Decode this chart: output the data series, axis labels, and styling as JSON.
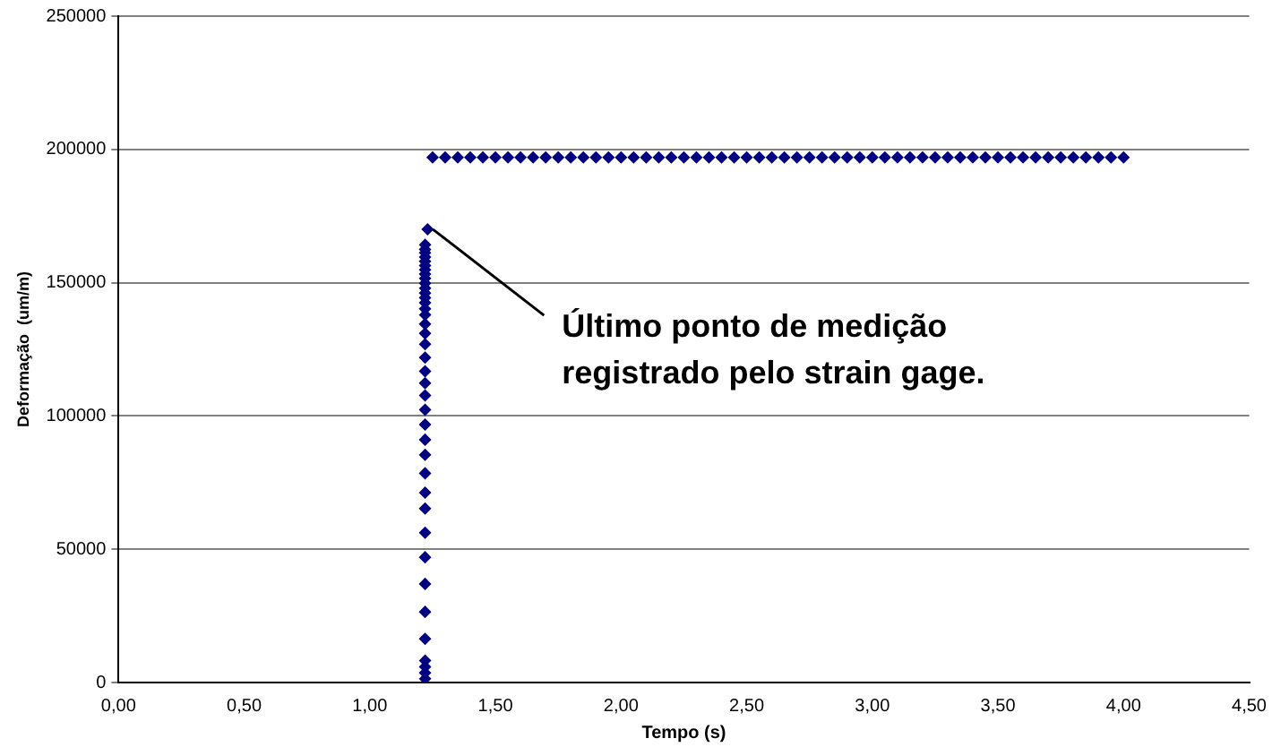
{
  "chart_data": {
    "type": "scatter",
    "xlabel": "Tempo (s)",
    "ylabel": "Deformação  (um/m)",
    "xlim": [
      0,
      4.5
    ],
    "xticks": [
      {
        "value": 0,
        "label": "0,00"
      },
      {
        "value": 0.5,
        "label": "0,50"
      },
      {
        "value": 1,
        "label": "1,00"
      },
      {
        "value": 1.5,
        "label": "1,50"
      },
      {
        "value": 2,
        "label": "2,00"
      },
      {
        "value": 2.5,
        "label": "2,50"
      },
      {
        "value": 3,
        "label": "3,00"
      },
      {
        "value": 3.5,
        "label": "3,50"
      },
      {
        "value": 4,
        "label": "4,00"
      },
      {
        "value": 4.5,
        "label": "4,50"
      }
    ],
    "ylim": [
      0,
      250000
    ],
    "yticks": [
      0,
      50000,
      100000,
      150000,
      200000,
      250000
    ],
    "grid": "y",
    "legend": false,
    "marker": "diamond",
    "series": [
      {
        "color": "#000080",
        "x": [
          1.22,
          1.22,
          1.22,
          1.22,
          1.22,
          1.22,
          1.22,
          1.22,
          1.22,
          1.22,
          1.22,
          1.22,
          1.22,
          1.22,
          1.22,
          1.22,
          1.22,
          1.22,
          1.22,
          1.22,
          1.22,
          1.22,
          1.22,
          1.22,
          1.22,
          1.22,
          1.22,
          1.22,
          1.22,
          1.22,
          1.22,
          1.22,
          1.22,
          1.22,
          1.22,
          1.22,
          1.22,
          1.22,
          1.22,
          1.23
        ],
        "values": [
          1400,
          3600,
          5900,
          8200,
          16400,
          26500,
          37000,
          47000,
          56200,
          65300,
          71200,
          78500,
          85400,
          91100,
          96800,
          102300,
          107700,
          112300,
          116800,
          121900,
          126900,
          131000,
          134500,
          137900,
          140200,
          142500,
          144300,
          146100,
          147900,
          149800,
          151600,
          153200,
          154800,
          156400,
          158000,
          159600,
          161200,
          162500,
          164200,
          170000
        ]
      },
      {
        "color": "#000080",
        "x": [
          1.25,
          1.3,
          1.35,
          1.4,
          1.45,
          1.5,
          1.55,
          1.6,
          1.65,
          1.7,
          1.75,
          1.8,
          1.85,
          1.9,
          1.95,
          2,
          2.05,
          2.1,
          2.15,
          2.2,
          2.25,
          2.3,
          2.35,
          2.4,
          2.45,
          2.5,
          2.55,
          2.6,
          2.65,
          2.7,
          2.75,
          2.8,
          2.85,
          2.9,
          2.95,
          3,
          3.05,
          3.1,
          3.15,
          3.2,
          3.25,
          3.3,
          3.35,
          3.4,
          3.45,
          3.5,
          3.55,
          3.6,
          3.65,
          3.7,
          3.75,
          3.8,
          3.85,
          3.9,
          3.95,
          4
        ],
        "values": [
          197000,
          197000,
          197000,
          197000,
          197000,
          197000,
          197000,
          197000,
          197000,
          197000,
          197000,
          197000,
          197000,
          197000,
          197000,
          197000,
          197000,
          197000,
          197000,
          197000,
          197000,
          197000,
          197000,
          197000,
          197000,
          197000,
          197000,
          197000,
          197000,
          197000,
          197000,
          197000,
          197000,
          197000,
          197000,
          197000,
          197000,
          197000,
          197000,
          197000,
          197000,
          197000,
          197000,
          197000,
          197000,
          197000,
          197000,
          197000,
          197000,
          197000,
          197000,
          197000,
          197000,
          197000,
          197000,
          197000
        ]
      }
    ],
    "annotations": [
      {
        "text": "Último ponto de medição registrado pelo strain gage.",
        "x": 1.23,
        "y": 170000
      }
    ]
  }
}
